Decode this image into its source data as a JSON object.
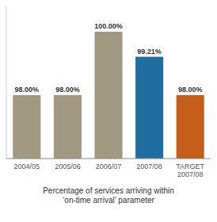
{
  "chart_data": {
    "type": "bar",
    "categories": [
      "2004/05",
      "2005/06",
      "2006/07",
      "2007/08",
      "TARGET\n2007/08"
    ],
    "values": [
      98.0,
      98.0,
      100.0,
      99.21,
      98.0
    ],
    "value_labels": [
      "98.00%",
      "98.00%",
      "100.00%",
      "99.21%",
      "98.00%"
    ],
    "data_labels": true,
    "colors": [
      "#a09880",
      "#a09880",
      "#a09880",
      "#1e6f9f",
      "#c45e1a"
    ],
    "x_label": "Percentage of services arriving within\n‘on-time arrival’ parameter",
    "ylim": [
      96.0,
      100.8
    ],
    "tick_labels": "x",
    "grid": false
  }
}
